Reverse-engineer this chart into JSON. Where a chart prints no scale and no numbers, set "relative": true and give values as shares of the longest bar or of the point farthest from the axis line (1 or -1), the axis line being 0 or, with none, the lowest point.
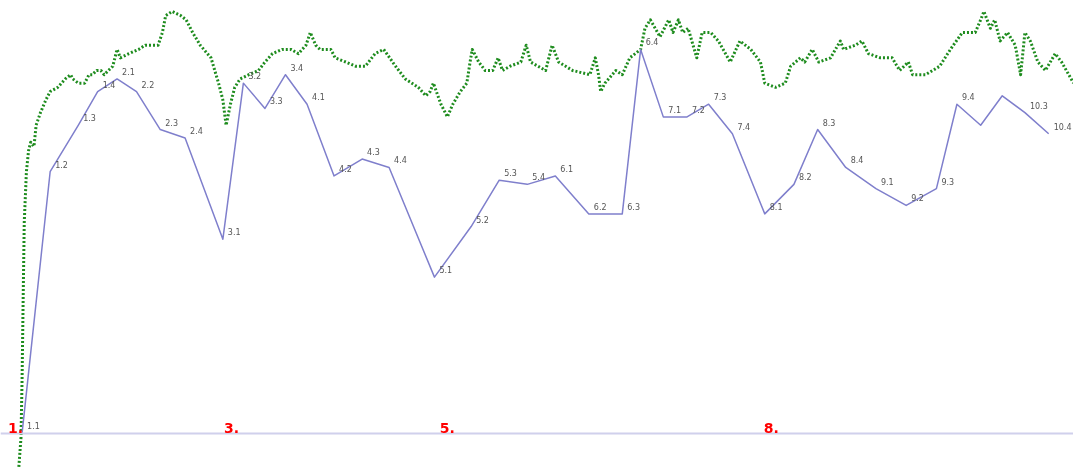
{
  "chart_data": {
    "type": "line",
    "relative": true,
    "tick_labels": "x",
    "xlim": [
      0.86,
      10.8
    ],
    "xticks": [
      {
        "value": 1,
        "label": "1."
      },
      {
        "value": 3,
        "label": "3."
      },
      {
        "value": 5,
        "label": "5."
      },
      {
        "value": 8,
        "label": "8."
      }
    ],
    "annotations": [
      {
        "text": "1.1",
        "x": 1.06,
        "y": 0
      },
      {
        "text": "1.2",
        "x": 1.32,
        "y": 0.62
      },
      {
        "text": "1.3",
        "x": 1.58,
        "y": 0.73
      },
      {
        "text": "1.4",
        "x": 1.76,
        "y": 0.81
      },
      {
        "text": "2.1",
        "x": 1.94,
        "y": 0.84
      },
      {
        "text": "2.2",
        "x": 2.12,
        "y": 0.81
      },
      {
        "text": "2.3",
        "x": 2.34,
        "y": 0.72
      },
      {
        "text": "2.4",
        "x": 2.57,
        "y": 0.7
      },
      {
        "text": "3.1",
        "x": 2.92,
        "y": 0.46
      },
      {
        "text": "3.2",
        "x": 3.11,
        "y": 0.83
      },
      {
        "text": "3.3",
        "x": 3.31,
        "y": 0.77
      },
      {
        "text": "3.4",
        "x": 3.5,
        "y": 0.85
      },
      {
        "text": "4.1",
        "x": 3.7,
        "y": 0.78
      },
      {
        "text": "4.2",
        "x": 3.95,
        "y": 0.61
      },
      {
        "text": "4.3",
        "x": 4.21,
        "y": 0.65
      },
      {
        "text": "4.4",
        "x": 4.46,
        "y": 0.63
      },
      {
        "text": "5.1",
        "x": 4.88,
        "y": 0.37
      },
      {
        "text": "5.2",
        "x": 5.22,
        "y": 0.49
      },
      {
        "text": "5.3",
        "x": 5.48,
        "y": 0.6
      },
      {
        "text": "5.4",
        "x": 5.74,
        "y": 0.59
      },
      {
        "text": "6.1",
        "x": 6.0,
        "y": 0.61
      },
      {
        "text": "6.2",
        "x": 6.31,
        "y": 0.52
      },
      {
        "text": "6.3",
        "x": 6.62,
        "y": 0.52
      },
      {
        "text": "6.4",
        "x": 6.79,
        "y": 0.91
      },
      {
        "text": "7.1",
        "x": 7.0,
        "y": 0.75
      },
      {
        "text": "7.2",
        "x": 7.22,
        "y": 0.75
      },
      {
        "text": "7.3",
        "x": 7.42,
        "y": 0.78
      },
      {
        "text": "7.4",
        "x": 7.64,
        "y": 0.71
      },
      {
        "text": "8.1",
        "x": 7.94,
        "y": 0.52
      },
      {
        "text": "8.2",
        "x": 8.21,
        "y": 0.59
      },
      {
        "text": "8.3",
        "x": 8.43,
        "y": 0.72
      },
      {
        "text": "8.4",
        "x": 8.69,
        "y": 0.63
      },
      {
        "text": "9.1",
        "x": 8.97,
        "y": 0.58
      },
      {
        "text": "9.2",
        "x": 9.25,
        "y": 0.54
      },
      {
        "text": "9.3",
        "x": 9.53,
        "y": 0.58
      },
      {
        "text": "9.4",
        "x": 9.72,
        "y": 0.78
      },
      {
        "text": "10.3",
        "x": 10.35,
        "y": 0.76
      },
      {
        "text": "10.4",
        "x": 10.57,
        "y": 0.71
      }
    ],
    "series": [
      {
        "color": "#1e8c1e",
        "line_style": "dotted",
        "x": [
          1.03,
          1.05,
          1.06,
          1.07,
          1.08,
          1.1,
          1.12,
          1.14,
          1.17,
          1.19,
          1.23,
          1.28,
          1.32,
          1.39,
          1.46,
          1.51,
          1.53,
          1.58,
          1.64,
          1.68,
          1.71,
          1.75,
          1.79,
          1.82,
          1.86,
          1.9,
          1.94,
          1.97,
          2.05,
          2.14,
          2.2,
          2.27,
          2.32,
          2.36,
          2.39,
          2.45,
          2.53,
          2.58,
          2.64,
          2.71,
          2.81,
          2.88,
          2.92,
          2.95,
          2.99,
          3.03,
          3.08,
          3.16,
          3.25,
          3.31,
          3.38,
          3.47,
          3.55,
          3.62,
          3.69,
          3.73,
          3.78,
          3.82,
          3.92,
          3.96,
          4.06,
          4.15,
          4.24,
          4.33,
          4.41,
          4.52,
          4.61,
          4.73,
          4.8,
          4.84,
          4.87,
          4.94,
          5.0,
          5.05,
          5.12,
          5.18,
          5.21,
          5.23,
          5.29,
          5.35,
          5.42,
          5.47,
          5.51,
          5.58,
          5.68,
          5.73,
          5.77,
          5.91,
          5.97,
          6.03,
          6.16,
          6.32,
          6.37,
          6.4,
          6.42,
          6.46,
          6.56,
          6.62,
          6.69,
          6.79,
          6.83,
          6.88,
          6.97,
          7.01,
          7.05,
          7.09,
          7.14,
          7.18,
          7.23,
          7.31,
          7.36,
          7.44,
          7.51,
          7.62,
          7.71,
          7.81,
          7.9,
          7.94,
          8.04,
          8.13,
          8.18,
          8.27,
          8.31,
          8.38,
          8.44,
          8.55,
          8.64,
          8.67,
          8.78,
          8.84,
          8.9,
          9.01,
          9.12,
          9.19,
          9.27,
          9.31,
          9.43,
          9.56,
          9.66,
          9.77,
          9.89,
          9.94,
          9.97,
          10.03,
          10.07,
          10.12,
          10.19,
          10.26,
          10.31,
          10.35,
          10.4,
          10.47,
          10.54,
          10.63,
          10.69,
          10.8
        ],
        "values": [
          -0.08,
          -0.01,
          0.13,
          0.32,
          0.5,
          0.62,
          0.67,
          0.69,
          0.68,
          0.73,
          0.76,
          0.79,
          0.81,
          0.82,
          0.84,
          0.85,
          0.84,
          0.83,
          0.83,
          0.85,
          0.85,
          0.86,
          0.86,
          0.85,
          0.86,
          0.87,
          0.91,
          0.89,
          0.9,
          0.91,
          0.92,
          0.92,
          0.92,
          0.95,
          0.99,
          1.0,
          0.99,
          0.98,
          0.95,
          0.92,
          0.89,
          0.83,
          0.79,
          0.73,
          0.78,
          0.82,
          0.84,
          0.85,
          0.86,
          0.88,
          0.9,
          0.91,
          0.91,
          0.9,
          0.92,
          0.95,
          0.92,
          0.91,
          0.91,
          0.89,
          0.88,
          0.87,
          0.87,
          0.9,
          0.91,
          0.87,
          0.84,
          0.82,
          0.8,
          0.81,
          0.83,
          0.78,
          0.75,
          0.78,
          0.81,
          0.83,
          0.88,
          0.91,
          0.88,
          0.86,
          0.86,
          0.89,
          0.86,
          0.87,
          0.88,
          0.92,
          0.88,
          0.86,
          0.92,
          0.88,
          0.86,
          0.85,
          0.89,
          0.85,
          0.81,
          0.83,
          0.86,
          0.85,
          0.89,
          0.91,
          0.96,
          0.98,
          0.94,
          0.96,
          0.98,
          0.95,
          0.98,
          0.95,
          0.96,
          0.89,
          0.95,
          0.95,
          0.93,
          0.88,
          0.93,
          0.91,
          0.88,
          0.83,
          0.82,
          0.83,
          0.87,
          0.89,
          0.88,
          0.91,
          0.88,
          0.89,
          0.93,
          0.91,
          0.92,
          0.93,
          0.9,
          0.89,
          0.89,
          0.86,
          0.88,
          0.85,
          0.85,
          0.87,
          0.91,
          0.95,
          0.95,
          0.98,
          1.0,
          0.96,
          0.98,
          0.93,
          0.95,
          0.92,
          0.85,
          0.95,
          0.93,
          0.88,
          0.86,
          0.9,
          0.88,
          0.83
        ]
      },
      {
        "color": "#7f7fcc",
        "line_style": "solid",
        "x": [
          1.06,
          1.32,
          1.58,
          1.76,
          1.94,
          2.12,
          2.34,
          2.57,
          2.92,
          3.11,
          3.31,
          3.5,
          3.7,
          3.95,
          4.21,
          4.46,
          4.88,
          5.22,
          5.48,
          5.74,
          6.0,
          6.31,
          6.62,
          6.79,
          7.0,
          7.22,
          7.42,
          7.64,
          7.94,
          8.21,
          8.43,
          8.69,
          8.97,
          9.25,
          9.53,
          9.72,
          9.94,
          10.14,
          10.35,
          10.57
        ],
        "values": [
          0,
          0.62,
          0.73,
          0.81,
          0.84,
          0.81,
          0.72,
          0.7,
          0.46,
          0.83,
          0.77,
          0.85,
          0.78,
          0.61,
          0.65,
          0.63,
          0.37,
          0.49,
          0.6,
          0.59,
          0.61,
          0.52,
          0.52,
          0.91,
          0.75,
          0.75,
          0.78,
          0.71,
          0.52,
          0.59,
          0.72,
          0.63,
          0.58,
          0.54,
          0.58,
          0.78,
          0.73,
          0.8,
          0.76,
          0.71
        ]
      }
    ]
  }
}
